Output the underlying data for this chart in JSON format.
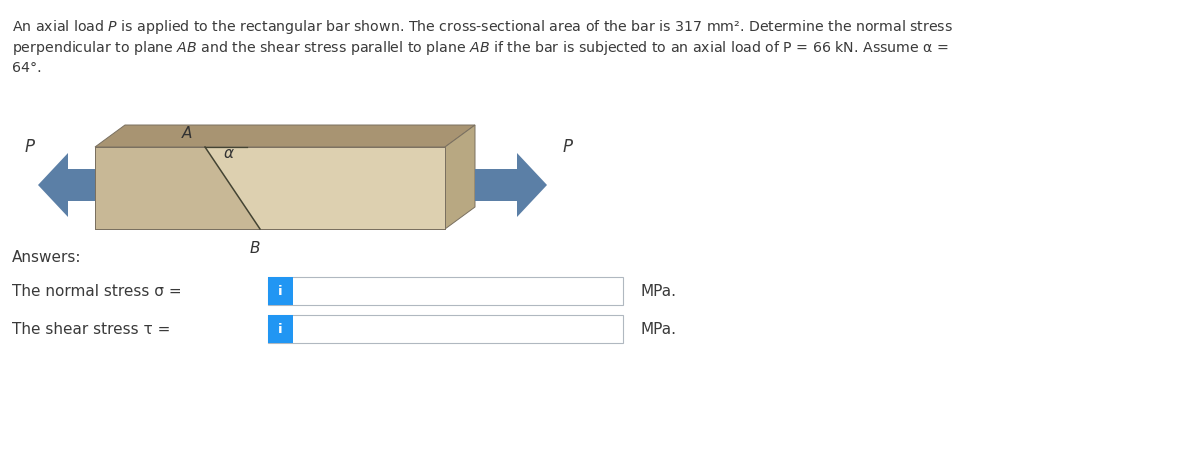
{
  "bar_face_color": "#C8B896",
  "bar_top_color": "#A89472",
  "bar_right_color": "#B8A882",
  "bar_cut_color": "#DDD0B0",
  "arrow_color": "#5B7FA6",
  "input_box_color": "#FFFFFF",
  "input_box_border": "#B0B8C0",
  "blue_button_color": "#2196F3",
  "text_color": "#3A3A3A",
  "background_color": "#FFFFFF",
  "para_line1": "An axial load $P$ is applied to the rectangular bar shown. The cross-sectional area of the bar is 317 mm². Determine the normal stress",
  "para_line2": "perpendicular to plane $AB$ and the shear stress parallel to plane $AB$ if the bar is subjected to an axial load of P = 66 kN. Assume α =",
  "para_line3": "64°.",
  "answers_label": "Answers:",
  "normal_stress_label": "The normal stress σ =",
  "shear_stress_label": "The shear stress τ =",
  "mpa_label": "MPa."
}
